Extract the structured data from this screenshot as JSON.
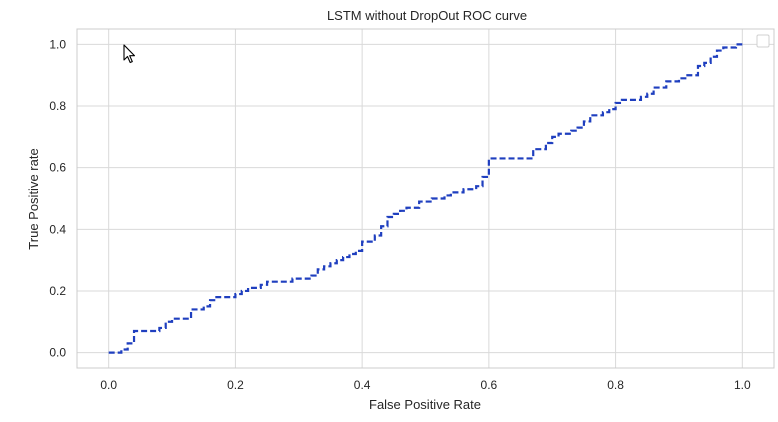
{
  "chart_data": {
    "type": "line",
    "title": "LSTM without DropOut ROC curve",
    "xlabel": "False Positive Rate",
    "ylabel": "True Positive rate",
    "xlim": [
      -0.05,
      1.05
    ],
    "ylim": [
      -0.05,
      1.05
    ],
    "xticks": [
      "0.0",
      "0.2",
      "0.4",
      "0.6",
      "0.8",
      "1.0"
    ],
    "yticks": [
      "0.0",
      "0.2",
      "0.4",
      "0.6",
      "0.8",
      "1.0"
    ],
    "xtick_values": [
      0.0,
      0.2,
      0.4,
      0.6,
      0.8,
      1.0
    ],
    "ytick_values": [
      0.0,
      0.2,
      0.4,
      0.6,
      0.8,
      1.0
    ],
    "grid": true,
    "legend": "top-right",
    "series": [
      {
        "color": "#1f3fbf",
        "style": "dashed-step",
        "x": [
          0.0,
          0.02,
          0.03,
          0.04,
          0.06,
          0.08,
          0.09,
          0.1,
          0.13,
          0.15,
          0.16,
          0.17,
          0.19,
          0.2,
          0.21,
          0.22,
          0.24,
          0.25,
          0.29,
          0.32,
          0.33,
          0.34,
          0.35,
          0.36,
          0.37,
          0.38,
          0.39,
          0.4,
          0.42,
          0.43,
          0.44,
          0.45,
          0.46,
          0.47,
          0.49,
          0.51,
          0.53,
          0.54,
          0.56,
          0.58,
          0.59,
          0.6,
          0.66,
          0.67,
          0.69,
          0.7,
          0.71,
          0.73,
          0.74,
          0.75,
          0.76,
          0.78,
          0.79,
          0.8,
          0.81,
          0.84,
          0.85,
          0.86,
          0.88,
          0.9,
          0.91,
          0.93,
          0.94,
          0.95,
          0.96,
          0.97,
          0.99,
          1.0
        ],
        "y": [
          0.0,
          0.01,
          0.03,
          0.07,
          0.07,
          0.08,
          0.1,
          0.11,
          0.14,
          0.15,
          0.17,
          0.18,
          0.18,
          0.19,
          0.2,
          0.21,
          0.22,
          0.23,
          0.24,
          0.25,
          0.27,
          0.28,
          0.29,
          0.3,
          0.31,
          0.32,
          0.33,
          0.36,
          0.38,
          0.41,
          0.44,
          0.45,
          0.46,
          0.47,
          0.49,
          0.5,
          0.51,
          0.52,
          0.53,
          0.54,
          0.57,
          0.63,
          0.63,
          0.66,
          0.68,
          0.7,
          0.71,
          0.72,
          0.73,
          0.75,
          0.77,
          0.78,
          0.79,
          0.81,
          0.82,
          0.83,
          0.84,
          0.86,
          0.88,
          0.89,
          0.9,
          0.93,
          0.94,
          0.96,
          0.98,
          0.99,
          1.0,
          1.0
        ]
      }
    ]
  },
  "colors": {
    "plot_border": "#cccccc",
    "grid": "#d9d9d9",
    "curve": "#1f3fbf"
  },
  "icons": {
    "cursor": "mouse-pointer-icon",
    "legend": "legend-box"
  }
}
